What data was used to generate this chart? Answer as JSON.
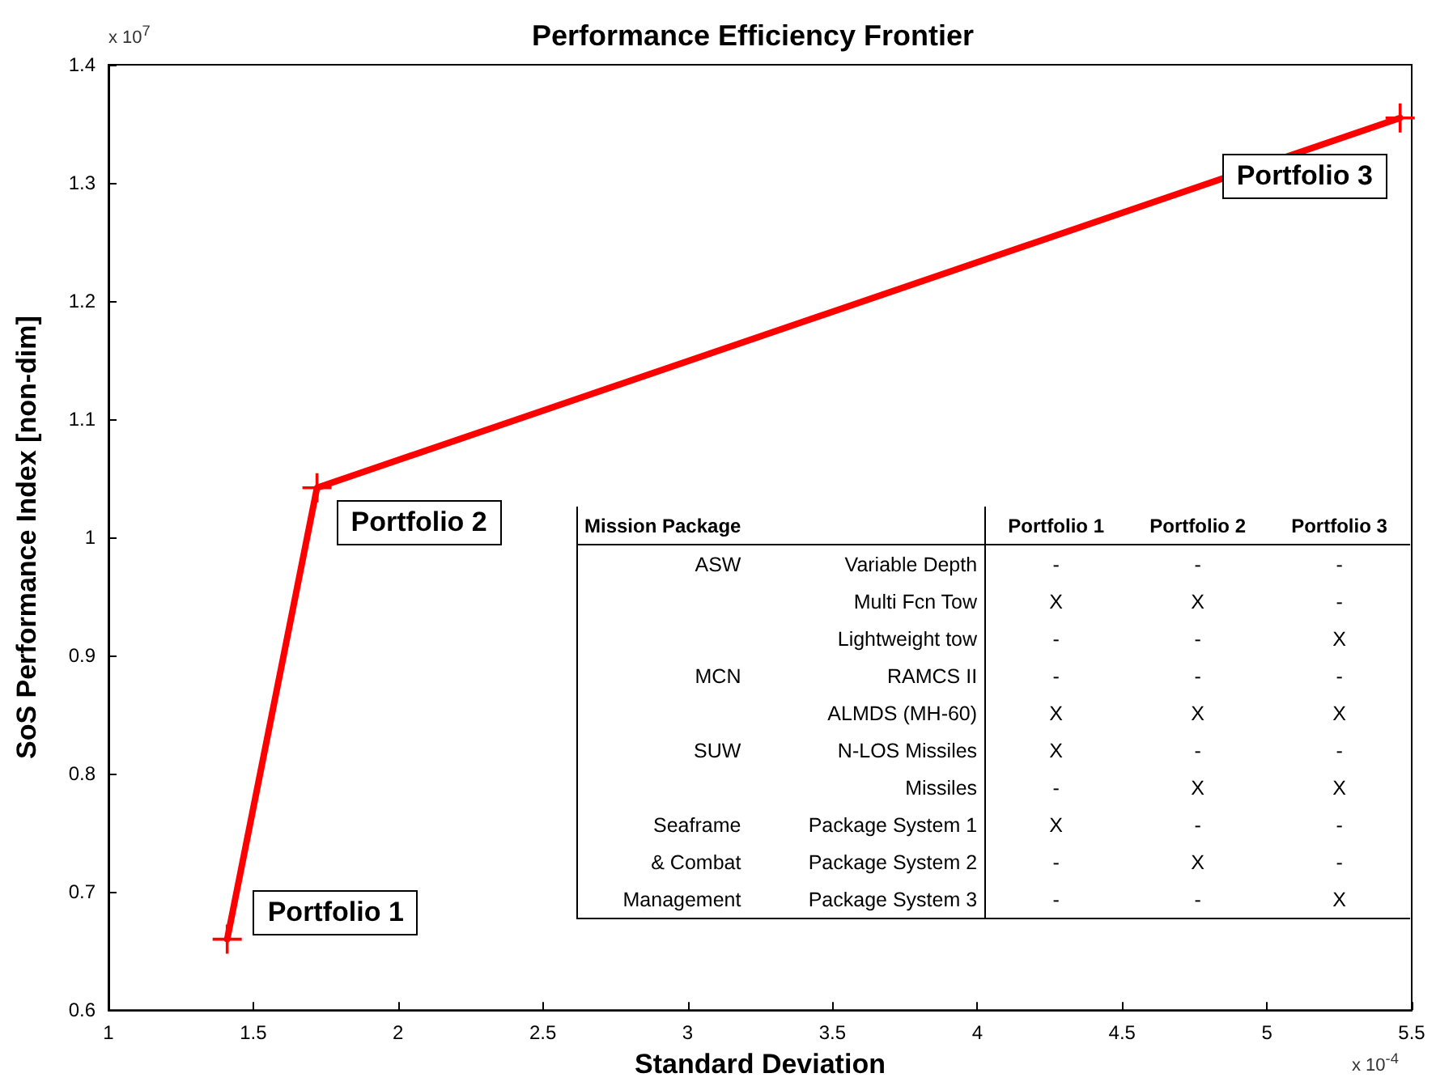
{
  "chart_data": {
    "type": "line",
    "title": "Performance Efficiency Frontier",
    "xlabel": "Standard Deviation",
    "ylabel": "SoS Performance Index [non-dim]",
    "x": [
      1.41,
      1.72,
      5.46
    ],
    "series": [
      {
        "color": "#ff0000",
        "values": [
          0.66,
          1.042,
          1.355
        ]
      }
    ],
    "marker": "cross",
    "line_style": "solid",
    "grid": false,
    "xlim": [
      1,
      5.5
    ],
    "xticks": [
      1,
      1.5,
      2,
      2.5,
      3,
      3.5,
      4,
      4.5,
      5,
      5.5
    ],
    "ylim": [
      0.6,
      1.4
    ],
    "yticks": [
      0.6,
      0.7,
      0.8,
      0.9,
      1,
      1.1,
      1.2,
      1.3,
      1.4
    ],
    "annotations": [
      {
        "text": "Portfolio 1",
        "x": 1.41,
        "y": 0.66
      },
      {
        "text": "Portfolio 2",
        "x": 1.72,
        "y": 1.042
      },
      {
        "text": "Portfolio 3",
        "x": 5.46,
        "y": 1.355
      },
      "x 10$^{7}$",
      "x 10$^{-4}$",
      "Mission Package\t\tPortfolio 1\tPortfolio 2\tPortfolio 3",
      "ASW\tVariable Depth\t-\t-\t-",
      "\tMulti Fcn Tow\tX\tX\t-",
      "\tLightweight tow\t-\t-\tX",
      "MCN\tRAMCS II\t-\t-\t-",
      "\tALMDS (MH-60)\tX\tX\tX",
      "SUW\tN-LOS Missiles\tX\t-\t-",
      "\tMissiles\t-\tX\tX",
      "Seaframe\tPackage System 1\tX\t-\t-",
      "& Combat\tPackage System 2\t-\tX\t-",
      "Management\tPackage System 3\t-\t-\tX"
    ]
  }
}
